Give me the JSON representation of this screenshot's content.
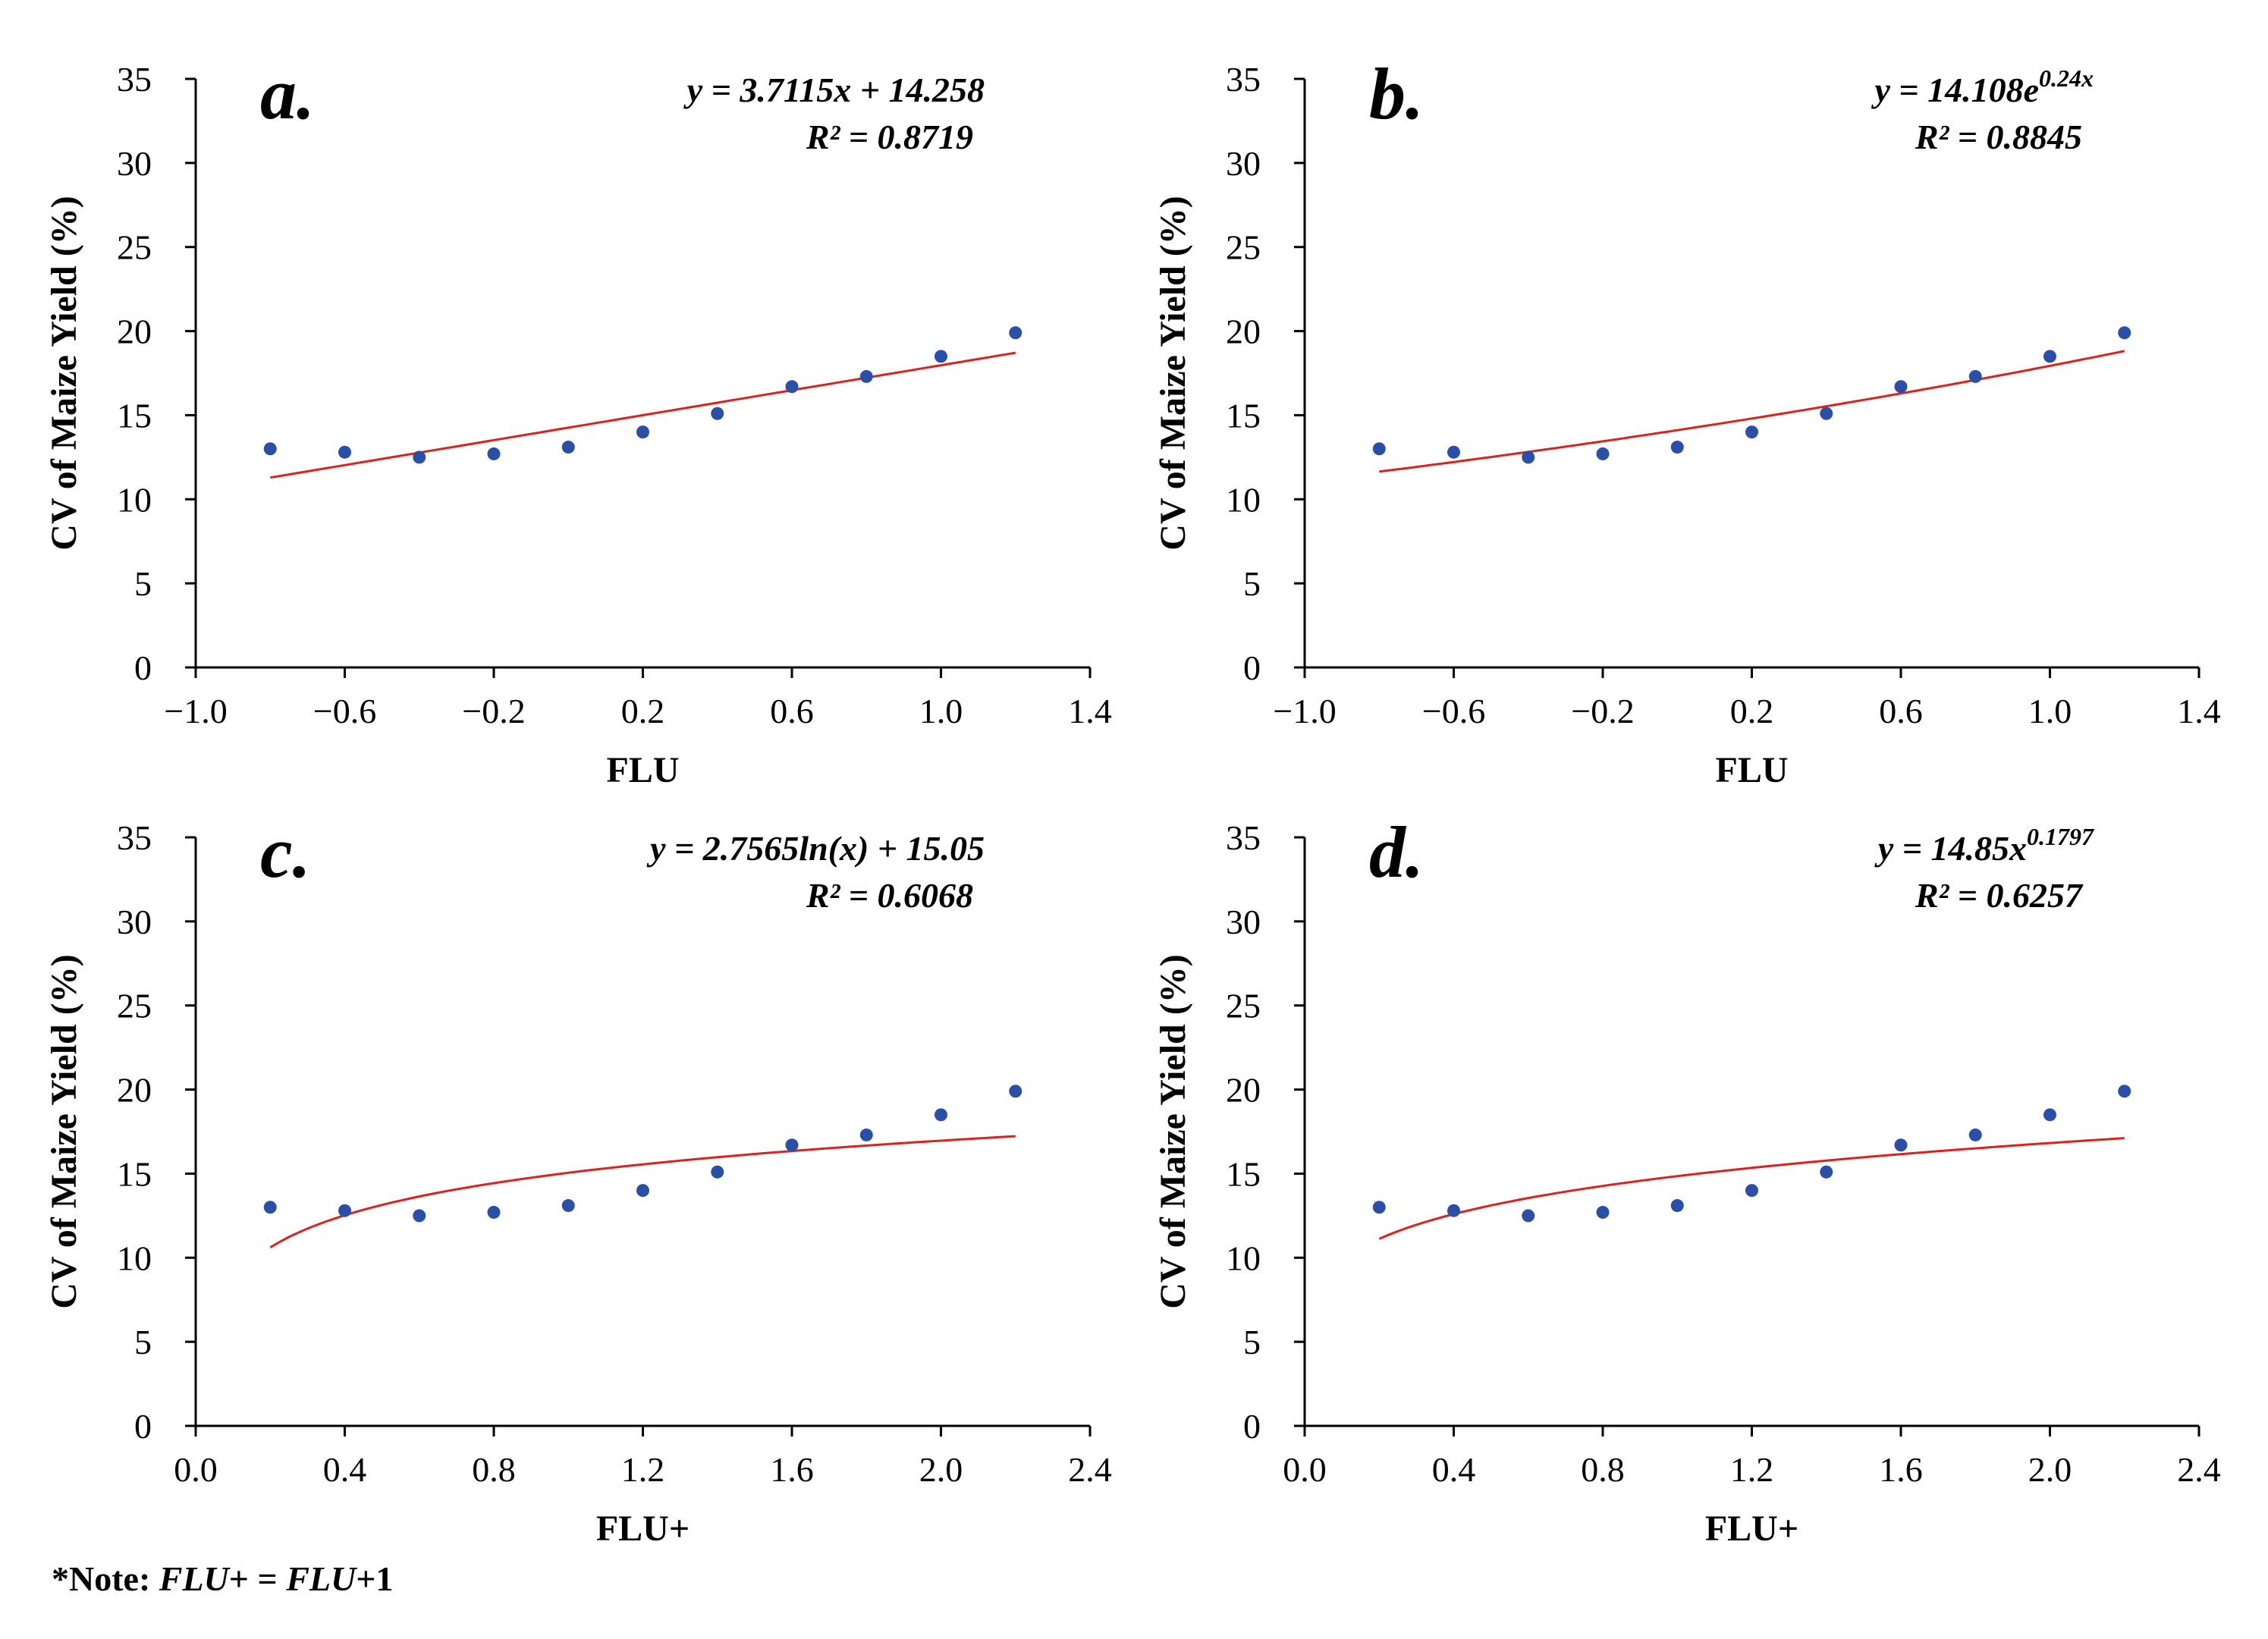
{
  "note": {
    "prefix": "*Note: ",
    "term1": "FLU",
    "mid": "+ = ",
    "term2": "FLU",
    "suffix": "+1"
  },
  "colors": {
    "points": "#2a4fa8",
    "fit": "#e0201c",
    "axis": "#000000"
  },
  "chart_data": [
    {
      "type": "scatter",
      "panel": "a.",
      "xlabel": "FLU",
      "ylabel": "CV of Maize Yield (%)",
      "xlim": [
        -1.0,
        1.4
      ],
      "ylim": [
        0,
        35
      ],
      "xticks": [
        "−1.0",
        "−0.6",
        "−0.2",
        "0.2",
        "0.6",
        "1.0",
        "1.4"
      ],
      "yticks": [
        "0",
        "5",
        "10",
        "15",
        "20",
        "25",
        "30",
        "35"
      ],
      "grid": false,
      "x": [
        -0.8,
        -0.6,
        -0.4,
        -0.2,
        0.0,
        0.2,
        0.4,
        0.6,
        0.8,
        1.0,
        1.2
      ],
      "y": [
        13.0,
        12.8,
        12.5,
        12.7,
        13.1,
        14.0,
        15.1,
        16.7,
        17.3,
        18.5,
        19.9
      ],
      "fit": {
        "model": "linear",
        "a": 3.7115,
        "b": 14.258,
        "range": [
          -0.8,
          1.2
        ]
      },
      "equation": "y = 3.7115x + 14.258",
      "r2": "R² = 0.8719"
    },
    {
      "type": "scatter",
      "panel": "b.",
      "xlabel": "FLU",
      "ylabel": "CV of Maize Yield (%)",
      "xlim": [
        -1.0,
        1.4
      ],
      "ylim": [
        0,
        35
      ],
      "xticks": [
        "−1.0",
        "−0.6",
        "−0.2",
        "0.2",
        "0.6",
        "1.0",
        "1.4"
      ],
      "yticks": [
        "0",
        "5",
        "10",
        "15",
        "20",
        "25",
        "30",
        "35"
      ],
      "grid": false,
      "x": [
        -0.8,
        -0.6,
        -0.4,
        -0.2,
        0.0,
        0.2,
        0.4,
        0.6,
        0.8,
        1.0,
        1.2
      ],
      "y": [
        13.0,
        12.8,
        12.5,
        12.7,
        13.1,
        14.0,
        15.1,
        16.7,
        17.3,
        18.5,
        19.9
      ],
      "fit": {
        "model": "exponential",
        "a": 14.108,
        "b": 0.24,
        "range": [
          -0.8,
          1.2
        ]
      },
      "equation": "y = 14.108e",
      "equation_sup": "0.24x",
      "r2": "R² = 0.8845"
    },
    {
      "type": "scatter",
      "panel": "c.",
      "xlabel": "FLU+",
      "ylabel": "CV of Maize Yield (%)",
      "xlim": [
        0.0,
        2.4
      ],
      "ylim": [
        0,
        35
      ],
      "xticks": [
        "0.0",
        "0.4",
        "0.8",
        "1.2",
        "1.6",
        "2.0",
        "2.4"
      ],
      "yticks": [
        "0",
        "5",
        "10",
        "15",
        "20",
        "25",
        "30",
        "35"
      ],
      "grid": false,
      "x": [
        0.2,
        0.4,
        0.6,
        0.8,
        1.0,
        1.2,
        1.4,
        1.6,
        1.8,
        2.0,
        2.2
      ],
      "y": [
        13.0,
        12.8,
        12.5,
        12.7,
        13.1,
        14.0,
        15.1,
        16.7,
        17.3,
        18.5,
        19.9
      ],
      "fit": {
        "model": "log",
        "a": 2.7565,
        "b": 15.05,
        "range": [
          0.2,
          2.2
        ]
      },
      "equation": "y = 2.7565ln(x) + 15.05",
      "r2": "R² = 0.6068"
    },
    {
      "type": "scatter",
      "panel": "d.",
      "xlabel": "FLU+",
      "ylabel": "CV of Maize Yield (%)",
      "xlim": [
        0.0,
        2.4
      ],
      "ylim": [
        0,
        35
      ],
      "xticks": [
        "0.0",
        "0.4",
        "0.8",
        "1.2",
        "1.6",
        "2.0",
        "2.4"
      ],
      "yticks": [
        "0",
        "5",
        "10",
        "15",
        "20",
        "25",
        "30",
        "35"
      ],
      "grid": false,
      "x": [
        0.2,
        0.4,
        0.6,
        0.8,
        1.0,
        1.2,
        1.4,
        1.6,
        1.8,
        2.0,
        2.2
      ],
      "y": [
        13.0,
        12.8,
        12.5,
        12.7,
        13.1,
        14.0,
        15.1,
        16.7,
        17.3,
        18.5,
        19.9
      ],
      "fit": {
        "model": "power",
        "a": 14.85,
        "b": 0.1797,
        "range": [
          0.2,
          2.2
        ]
      },
      "equation": "y = 14.85x",
      "equation_sup": "0.1797",
      "r2": "R² = 0.6257"
    }
  ]
}
